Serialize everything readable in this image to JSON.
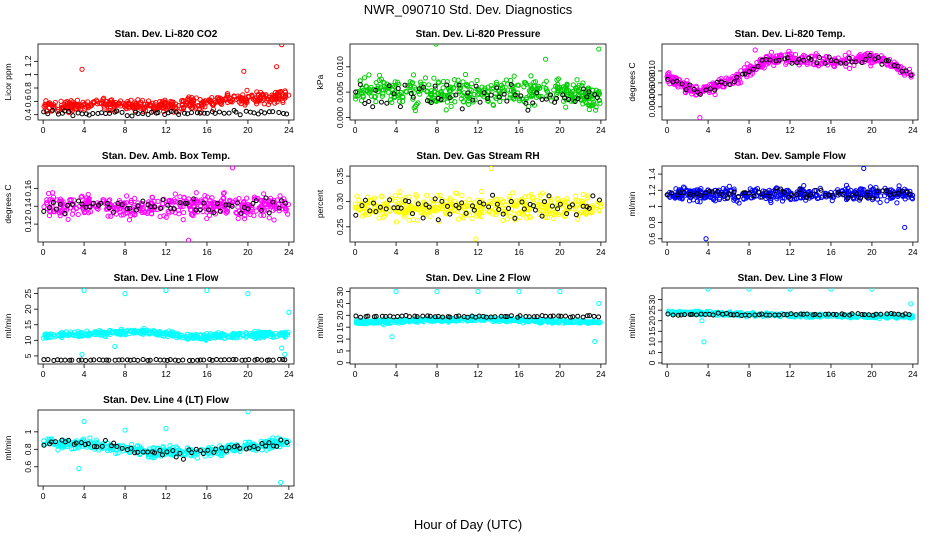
{
  "page_title": "NWR_090710  Std. Dev. Diagnostics",
  "x_axis_title": "Hour of Day (UTC)",
  "series_colors": {
    "main": "see per-panel",
    "secondary": "#000000"
  },
  "chart_data": [
    {
      "type": "scatter",
      "title": "Stan. Dev. Li-820 CO2",
      "ylabel": "Licor ppm",
      "color": "#ff0000",
      "xlim": [
        -0.5,
        24.5
      ],
      "ylim": [
        0.32,
        1.46
      ],
      "yticks": [
        0.4,
        0.6,
        0.8,
        1.0,
        1.2
      ],
      "xticks": [
        0,
        4,
        8,
        12,
        16,
        20,
        24
      ],
      "baseline": 0.47,
      "spread": 0.09,
      "trend": [
        [
          0,
          0.52
        ],
        [
          8,
          0.56
        ],
        [
          12,
          0.52
        ],
        [
          18,
          0.62
        ],
        [
          24,
          0.68
        ]
      ],
      "secondary": {
        "base": 0.42,
        "spread": 0.04
      },
      "outliers": [
        [
          23.3,
          1.45
        ],
        [
          22.8,
          1.12
        ],
        [
          19.6,
          1.05
        ],
        [
          3.8,
          1.08
        ]
      ]
    },
    {
      "type": "scatter",
      "title": "Stan. Dev. Li-820 Pressure",
      "ylabel": "kPa",
      "color": "#00cc00",
      "xlim": [
        -0.5,
        24.5
      ],
      "ylim": [
        -0.0005,
        0.0145
      ],
      "yticks": [
        0.0,
        0.005,
        0.01
      ],
      "ytick_labels": [
        "0.000",
        "0.005",
        "0.010"
      ],
      "xticks": [
        0,
        4,
        8,
        12,
        16,
        20,
        24
      ],
      "baseline": 0.005,
      "spread": 0.0025,
      "trend": [
        [
          0,
          0.005
        ],
        [
          12,
          0.005
        ],
        [
          18,
          0.0055
        ],
        [
          24,
          0.004
        ]
      ],
      "secondary": {
        "base": 0.004,
        "spread": 0.0025
      },
      "outliers": [
        [
          7.9,
          0.0145
        ],
        [
          23.8,
          0.0135
        ],
        [
          18.6,
          0.0115
        ]
      ]
    },
    {
      "type": "scatter",
      "title": "Stan. Dev. Li-820 Temp.",
      "ylabel": "degrees C",
      "color": "#ff00ff",
      "xlim": [
        -0.5,
        24.5
      ],
      "ylim": [
        0.0018,
        0.0145
      ],
      "yticks": [
        0.004,
        0.006,
        0.008,
        0.01
      ],
      "ytick_labels": [
        "0.004",
        "0.006",
        "0.008",
        "0.010"
      ],
      "xticks": [
        0,
        4,
        8,
        12,
        16,
        20,
        24
      ],
      "baseline": 0.01,
      "spread": 0.001,
      "trend": [
        [
          0,
          0.009
        ],
        [
          1.5,
          0.0075
        ],
        [
          3,
          0.0065
        ],
        [
          5,
          0.0075
        ],
        [
          8,
          0.01
        ],
        [
          10,
          0.012
        ],
        [
          14,
          0.0118
        ],
        [
          17,
          0.0115
        ],
        [
          20,
          0.0122
        ],
        [
          22,
          0.0112
        ],
        [
          24,
          0.009
        ]
      ],
      "secondary": {
        "base": 0.0,
        "spread": 0.0006
      },
      "outliers": [
        [
          3.2,
          0.0022
        ],
        [
          8.6,
          0.0135
        ]
      ]
    },
    {
      "type": "scatter",
      "title": "Stan. Dev. Amb. Box Temp.",
      "ylabel": "degrees C",
      "color": "#ff00ff",
      "xlim": [
        -0.5,
        24.5
      ],
      "ylim": [
        0.1,
        0.185
      ],
      "yticks": [
        0.12,
        0.14,
        0.16
      ],
      "xticks": [
        0,
        4,
        8,
        12,
        16,
        20,
        24
      ],
      "baseline": 0.14,
      "spread": 0.012,
      "trend": [
        [
          0,
          0.14
        ],
        [
          24,
          0.14
        ]
      ],
      "secondary": {
        "base": 0.0,
        "spread": 0.008
      },
      "outliers": [
        [
          18.5,
          0.183
        ],
        [
          14.2,
          0.102
        ]
      ]
    },
    {
      "type": "scatter",
      "title": "Stan. Dev. Gas Stream RH",
      "ylabel": "percent",
      "color": "#ffff00",
      "xlim": [
        -0.5,
        24.5
      ],
      "ylim": [
        0.22,
        0.37
      ],
      "yticks": [
        0.25,
        0.3,
        0.35
      ],
      "ytick_labels": [
        "0.25",
        "0.30",
        "0.35"
      ],
      "xticks": [
        0,
        4,
        8,
        12,
        16,
        20,
        24
      ],
      "baseline": 0.29,
      "spread": 0.022,
      "trend": [
        [
          0,
          0.29
        ],
        [
          24,
          0.29
        ]
      ],
      "secondary": {
        "base": 0.0,
        "spread": 0.02
      },
      "outliers": [
        [
          13.3,
          0.365
        ],
        [
          11.8,
          0.226
        ]
      ]
    },
    {
      "type": "scatter",
      "title": "Stan. Dev. Sample Flow",
      "ylabel": "ml/min",
      "color": "#0000ff",
      "xlim": [
        -0.5,
        24.5
      ],
      "ylim": [
        0.56,
        1.5
      ],
      "yticks": [
        0.6,
        0.8,
        1.0,
        1.2,
        1.4
      ],
      "xticks": [
        0,
        4,
        8,
        12,
        16,
        20,
        24
      ],
      "baseline": 1.15,
      "spread": 0.08,
      "trend": [
        [
          0,
          1.15
        ],
        [
          24,
          1.15
        ]
      ],
      "secondary": {
        "base": 0.0,
        "spread": 0.05
      },
      "outliers": [
        [
          3.8,
          0.6
        ],
        [
          23.2,
          0.74
        ],
        [
          19.2,
          1.47
        ]
      ]
    },
    {
      "type": "scatter",
      "title": "Stan. Dev. Line 1 Flow",
      "ylabel": "ml/min",
      "color": "#00ffff",
      "xlim": [
        -0.5,
        24.5
      ],
      "ylim": [
        2.4,
        26.8
      ],
      "yticks": [
        5,
        10,
        15,
        20,
        25
      ],
      "xticks": [
        0,
        4,
        8,
        12,
        16,
        20,
        24
      ],
      "baseline": 11.8,
      "spread": 0.9,
      "trend": [
        [
          0,
          11.5
        ],
        [
          10,
          12.8
        ],
        [
          14,
          11.2
        ],
        [
          24,
          12
        ]
      ],
      "secondary": {
        "base": 3.7,
        "spread": 0.2
      },
      "outliers": [
        [
          4,
          26
        ],
        [
          8,
          25
        ],
        [
          12,
          26
        ],
        [
          16,
          26
        ],
        [
          20,
          25
        ],
        [
          24,
          19
        ],
        [
          23.3,
          7.5
        ],
        [
          23.6,
          5.5
        ],
        [
          7,
          8
        ],
        [
          3.8,
          5.5
        ]
      ]
    },
    {
      "type": "scatter",
      "title": "Stan. Dev. Line 2 Flow",
      "ylabel": "ml/min",
      "color": "#00ffff",
      "xlim": [
        -0.5,
        24.5
      ],
      "ylim": [
        -0.5,
        31.5
      ],
      "yticks": [
        0,
        5,
        10,
        15,
        20,
        25,
        30
      ],
      "xticks": [
        0,
        4,
        8,
        12,
        16,
        20,
        24
      ],
      "baseline": 17.5,
      "spread": 0.8,
      "trend": [
        [
          0,
          17
        ],
        [
          12,
          18.5
        ],
        [
          24,
          17
        ]
      ],
      "secondary": {
        "base": 19.5,
        "spread": 0.4
      },
      "outliers": [
        [
          4,
          30
        ],
        [
          8,
          30
        ],
        [
          12,
          30
        ],
        [
          16,
          30
        ],
        [
          20,
          30
        ],
        [
          23.8,
          25
        ],
        [
          23.4,
          9
        ],
        [
          3.6,
          11
        ],
        [
          2.8,
          16
        ]
      ]
    },
    {
      "type": "scatter",
      "title": "Stan. Dev. Line 3 Flow",
      "ylabel": "ml/min",
      "color": "#00ffff",
      "xlim": [
        -0.5,
        24.5
      ],
      "ylim": [
        -0.5,
        35.5
      ],
      "yticks": [
        0,
        5,
        10,
        15,
        20,
        25,
        30
      ],
      "xticks": [
        0,
        4,
        8,
        12,
        16,
        20,
        24
      ],
      "baseline": 22.5,
      "spread": 0.8,
      "trend": [
        [
          0,
          24
        ],
        [
          12,
          22.5
        ],
        [
          24,
          22
        ]
      ],
      "secondary": {
        "base": 23.0,
        "spread": 0.5
      },
      "outliers": [
        [
          4,
          35
        ],
        [
          8,
          35
        ],
        [
          12,
          35
        ],
        [
          16,
          35
        ],
        [
          20,
          35
        ],
        [
          23.8,
          28
        ],
        [
          3.6,
          10
        ],
        [
          3.4,
          20
        ]
      ]
    },
    {
      "type": "scatter",
      "title": "Stan. Dev. Line 4 (LT) Flow",
      "ylabel": "ml/min",
      "color": "#00ffff",
      "xlim": [
        -0.5,
        24.5
      ],
      "ylim": [
        0.38,
        1.25
      ],
      "yticks": [
        0.6,
        0.8,
        1.0
      ],
      "xticks": [
        0,
        4,
        8,
        12,
        16,
        20,
        24
      ],
      "baseline": 0.85,
      "spread": 0.055,
      "trend": [
        [
          0,
          0.88
        ],
        [
          5,
          0.85
        ],
        [
          10,
          0.78
        ],
        [
          14,
          0.76
        ],
        [
          18,
          0.8
        ],
        [
          24,
          0.88
        ]
      ],
      "secondary": {
        "base": 0.0,
        "spread": 0.05
      },
      "outliers": [
        [
          4,
          1.12
        ],
        [
          8,
          1.02
        ],
        [
          12,
          1.04
        ],
        [
          20,
          1.23
        ],
        [
          23.2,
          0.42
        ],
        [
          3.5,
          0.58
        ]
      ]
    }
  ]
}
